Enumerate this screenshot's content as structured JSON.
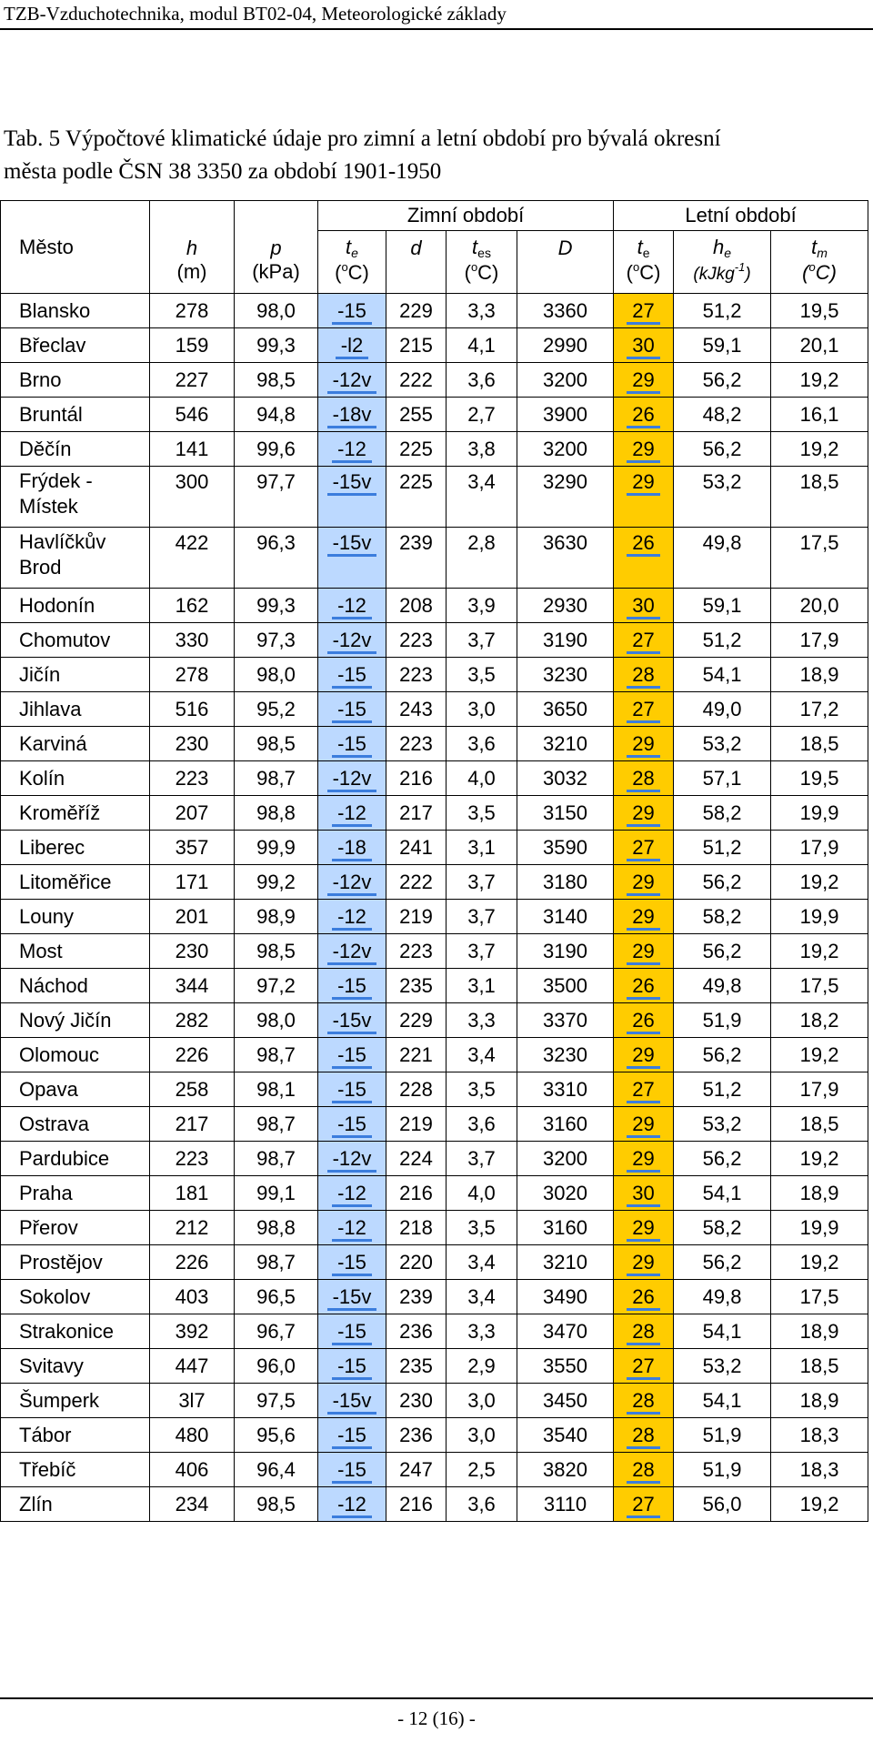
{
  "header": {
    "title": "TZB-Vzduchotechnika, modul BT02-04, Meteorologické základy"
  },
  "caption": {
    "line1": "Tab. 5 Výpočtové klimatické údaje pro zimní a letní období pro bývalá okresní",
    "line2": "města podle ČSN 38 3350 za období 1901-1950"
  },
  "table": {
    "group_winter": "Zimní období",
    "group_summer": "Letní období",
    "columns": {
      "city": "Město",
      "h": "h",
      "h_unit": "(m)",
      "p": "p",
      "p_unit": "(kPa)",
      "te_w": "t",
      "te_w_sub": "e",
      "te_w_unit_open": "(",
      "te_w_unit_sup": "o",
      "te_w_unit_close": "C)",
      "d": "d",
      "tes": "t",
      "tes_sub": "es",
      "tes_unit_open": "(",
      "tes_unit_sup": "o",
      "tes_unit_close": "C)",
      "D": "D",
      "te_s": "t",
      "te_s_sub": "e",
      "te_s_unit_open": "(",
      "te_s_unit_sup": "o",
      "te_s_unit_close": "C)",
      "he": "h",
      "he_sub": "e",
      "he_unit_open": "(kJkg",
      "he_unit_sup": "-1",
      "he_unit_close": ")",
      "tm": "t",
      "tm_sub": "m",
      "tm_unit_open": "(",
      "tm_unit_sup": "o",
      "tm_unit_close": "C)"
    },
    "rows": [
      {
        "city": "Blansko",
        "h": "278",
        "p": "98,0",
        "te_w": "-15",
        "d": "229",
        "tes": "3,3",
        "D": "3360",
        "te_s": "27",
        "he": "51,2",
        "tm": "19,5"
      },
      {
        "city": "Břeclav",
        "h": "159",
        "p": "99,3",
        "te_w": "-l2",
        "d": "215",
        "tes": "4,1",
        "D": "2990",
        "te_s": "30",
        "he": "59,1",
        "tm": "20,1"
      },
      {
        "city": "Brno",
        "h": "227",
        "p": "98,5",
        "te_w": "-12v",
        "d": "222",
        "tes": "3,6",
        "D": "3200",
        "te_s": "29",
        "he": "56,2",
        "tm": "19,2"
      },
      {
        "city": "Bruntál",
        "h": "546",
        "p": "94,8",
        "te_w": "-18v",
        "d": "255",
        "tes": "2,7",
        "D": "3900",
        "te_s": "26",
        "he": "48,2",
        "tm": "16,1"
      },
      {
        "city": "Děčín",
        "h": "141",
        "p": "99,6",
        "te_w": "-12",
        "d": "225",
        "tes": "3,8",
        "D": "3200",
        "te_s": "29",
        "he": "56,2",
        "tm": "19,2"
      },
      {
        "city": "Frýdek - Místek",
        "h": "300",
        "p": "97,7",
        "te_w": "-15v",
        "d": "225",
        "tes": "3,4",
        "D": "3290",
        "te_s": "29",
        "he": "53,2",
        "tm": "18,5",
        "tall": true
      },
      {
        "city": "Havlíčkův Brod",
        "h": "422",
        "p": "96,3",
        "te_w": "-15v",
        "d": "239",
        "tes": "2,8",
        "D": "3630",
        "te_s": "26",
        "he": "49,8",
        "tm": "17,5",
        "tall": true
      },
      {
        "city": "Hodonín",
        "h": "162",
        "p": "99,3",
        "te_w": "-12",
        "d": "208",
        "tes": "3,9",
        "D": "2930",
        "te_s": "30",
        "he": "59,1",
        "tm": "20,0"
      },
      {
        "city": "Chomutov",
        "h": "330",
        "p": "97,3",
        "te_w": "-12v",
        "d": "223",
        "tes": "3,7",
        "D": "3190",
        "te_s": "27",
        "he": "51,2",
        "tm": "17,9"
      },
      {
        "city": "Jičín",
        "h": "278",
        "p": "98,0",
        "te_w": "-15",
        "d": "223",
        "tes": "3,5",
        "D": "3230",
        "te_s": "28",
        "he": "54,1",
        "tm": "18,9"
      },
      {
        "city": "Jihlava",
        "h": "516",
        "p": "95,2",
        "te_w": "-15",
        "d": "243",
        "tes": "3,0",
        "D": "3650",
        "te_s": "27",
        "he": "49,0",
        "tm": "17,2"
      },
      {
        "city": "Karviná",
        "h": "230",
        "p": "98,5",
        "te_w": "-15",
        "d": "223",
        "tes": "3,6",
        "D": "3210",
        "te_s": "29",
        "he": "53,2",
        "tm": "18,5"
      },
      {
        "city": "Kolín",
        "h": "223",
        "p": "98,7",
        "te_w": "-12v",
        "d": "216",
        "tes": "4,0",
        "D": "3032",
        "te_s": "28",
        "he": "57,1",
        "tm": "19,5"
      },
      {
        "city": "Kroměříž",
        "h": "207",
        "p": "98,8",
        "te_w": "-12",
        "d": "217",
        "tes": "3,5",
        "D": "3150",
        "te_s": "29",
        "he": "58,2",
        "tm": "19,9"
      },
      {
        "city": "Liberec",
        "h": "357",
        "p": "99,9",
        "te_w": "-18",
        "d": "241",
        "tes": "3,1",
        "D": "3590",
        "te_s": "27",
        "he": "51,2",
        "tm": "17,9"
      },
      {
        "city": "Litoměřice",
        "h": "171",
        "p": "99,2",
        "te_w": "-12v",
        "d": "222",
        "tes": "3,7",
        "D": "3180",
        "te_s": "29",
        "he": "56,2",
        "tm": "19,2"
      },
      {
        "city": "Louny",
        "h": "201",
        "p": "98,9",
        "te_w": "-12",
        "d": "219",
        "tes": "3,7",
        "D": "3140",
        "te_s": "29",
        "he": "58,2",
        "tm": "19,9"
      },
      {
        "city": "Most",
        "h": "230",
        "p": "98,5",
        "te_w": "-12v",
        "d": "223",
        "tes": "3,7",
        "D": "3190",
        "te_s": "29",
        "he": "56,2",
        "tm": "19,2"
      },
      {
        "city": "Náchod",
        "h": "344",
        "p": "97,2",
        "te_w": "-15",
        "d": "235",
        "tes": "3,1",
        "D": "3500",
        "te_s": "26",
        "he": "49,8",
        "tm": "17,5"
      },
      {
        "city": "Nový Jičín",
        "h": "282",
        "p": "98,0",
        "te_w": "-15v",
        "d": "229",
        "tes": "3,3",
        "D": "3370",
        "te_s": "26",
        "he": "51,9",
        "tm": "18,2"
      },
      {
        "city": "Olomouc",
        "h": "226",
        "p": "98,7",
        "te_w": "-15",
        "d": "221",
        "tes": "3,4",
        "D": "3230",
        "te_s": "29",
        "he": "56,2",
        "tm": "19,2"
      },
      {
        "city": "Opava",
        "h": "258",
        "p": "98,1",
        "te_w": "-15",
        "d": "228",
        "tes": "3,5",
        "D": "3310",
        "te_s": "27",
        "he": "51,2",
        "tm": "17,9"
      },
      {
        "city": "Ostrava",
        "h": "217",
        "p": "98,7",
        "te_w": "-15",
        "d": "219",
        "tes": "3,6",
        "D": "3160",
        "te_s": "29",
        "he": "53,2",
        "tm": "18,5"
      },
      {
        "city": "Pardubice",
        "h": "223",
        "p": "98,7",
        "te_w": "-12v",
        "d": "224",
        "tes": "3,7",
        "D": "3200",
        "te_s": "29",
        "he": "56,2",
        "tm": "19,2"
      },
      {
        "city": "Praha",
        "h": "181",
        "p": "99,1",
        "te_w": "-12",
        "d": "216",
        "tes": "4,0",
        "D": "3020",
        "te_s": "30",
        "he": "54,1",
        "tm": "18,9"
      },
      {
        "city": "Přerov",
        "h": "212",
        "p": "98,8",
        "te_w": "-12",
        "d": "218",
        "tes": "3,5",
        "D": "3160",
        "te_s": "29",
        "he": "58,2",
        "tm": "19,9"
      },
      {
        "city": "Prostějov",
        "h": "226",
        "p": "98,7",
        "te_w": "-15",
        "d": "220",
        "tes": "3,4",
        "D": "3210",
        "te_s": "29",
        "he": "56,2",
        "tm": "19,2"
      },
      {
        "city": "Sokolov",
        "h": "403",
        "p": "96,5",
        "te_w": "-15v",
        "d": "239",
        "tes": "3,4",
        "D": "3490",
        "te_s": "26",
        "he": "49,8",
        "tm": "17,5"
      },
      {
        "city": "Strakonice",
        "h": "392",
        "p": "96,7",
        "te_w": "-15",
        "d": "236",
        "tes": "3,3",
        "D": "3470",
        "te_s": "28",
        "he": "54,1",
        "tm": "18,9"
      },
      {
        "city": "Svitavy",
        "h": "447",
        "p": "96,0",
        "te_w": "-15",
        "d": "235",
        "tes": "2,9",
        "D": "3550",
        "te_s": "27",
        "he": "53,2",
        "tm": "18,5"
      },
      {
        "city": "Šumperk",
        "h": "3l7",
        "p": "97,5",
        "te_w": "-15v",
        "d": "230",
        "tes": "3,0",
        "D": "3450",
        "te_s": "28",
        "he": "54,1",
        "tm": "18,9"
      },
      {
        "city": "Tábor",
        "h": "480",
        "p": "95,6",
        "te_w": "-15",
        "d": "236",
        "tes": "3,0",
        "D": "3540",
        "te_s": "28",
        "he": "51,9",
        "tm": "18,3"
      },
      {
        "city": "Třebíč",
        "h": "406",
        "p": "96,4",
        "te_w": "-15",
        "d": "247",
        "tes": "2,5",
        "D": "3820",
        "te_s": "28",
        "he": "51,9",
        "tm": "18,3"
      },
      {
        "city": "Zlín",
        "h": "234",
        "p": "98,5",
        "te_w": "-12",
        "d": "216",
        "tes": "3,6",
        "D": "3110",
        "te_s": "27",
        "he": "56,0",
        "tm": "19,2"
      }
    ]
  },
  "colors": {
    "winter_column": "#bcd9ff",
    "summer_column": "#ffcc00"
  },
  "footer": {
    "page_number": "- 12 (16) -"
  }
}
